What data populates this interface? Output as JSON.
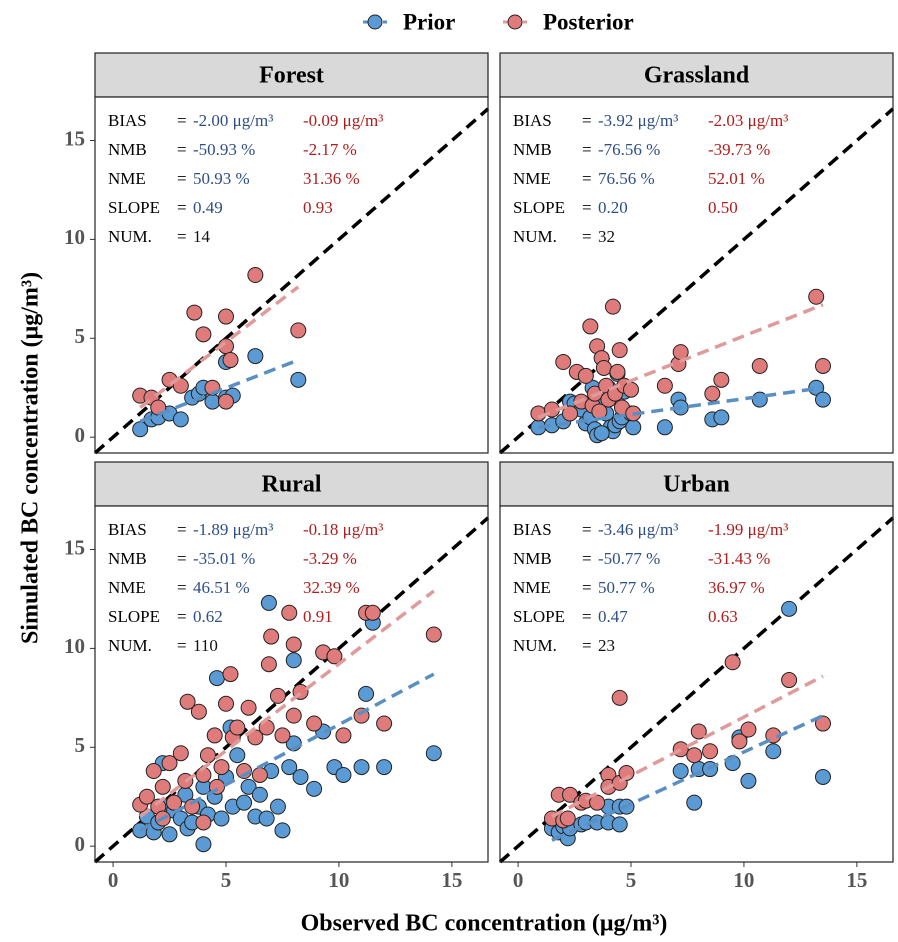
{
  "chart_data": [
    {
      "type": "scatter",
      "title": "Forest",
      "xlabel": "Observed BC concentration (μg/m³)",
      "ylabel": "Simulated BC concentration (μg/m³)",
      "xlim": [
        -0.8,
        16.6
      ],
      "ylim": [
        -0.8,
        17.2
      ],
      "yticks": [
        0,
        5,
        10,
        15
      ],
      "stats": [
        {
          "label": "BIAS",
          "sep": "=",
          "prior": "-2.00 μg/m³",
          "posterior": "-0.09 μg/m³"
        },
        {
          "label": "NMB",
          "sep": "=",
          "prior": "-50.93 %",
          "posterior": "-2.17 %"
        },
        {
          "label": "NME",
          "sep": "=",
          "prior": "50.93 %",
          "posterior": "31.36 %"
        },
        {
          "label": "SLOPE",
          "sep": "=",
          "prior": "0.49",
          "posterior": "0.93"
        },
        {
          "label": "NUM.",
          "sep": "=",
          "prior": "14"
        }
      ],
      "series": [
        {
          "name": "Prior",
          "color": "#5b9bd5",
          "line_color": "#5a8fc4",
          "x": [
            1.2,
            1.7,
            2.0,
            2.5,
            3.0,
            3.5,
            3.8,
            4.0,
            4.4,
            5.0,
            5.3,
            5.0,
            6.3,
            8.2
          ],
          "y": [
            0.4,
            0.9,
            1.0,
            1.2,
            0.9,
            2.0,
            2.2,
            2.5,
            1.8,
            2.0,
            2.1,
            3.8,
            4.1,
            2.9
          ],
          "fit": {
            "x": [
              1.2,
              8.2
            ],
            "y": [
              0.8,
              3.9
            ]
          }
        },
        {
          "name": "Posterior",
          "color": "#e07b7b",
          "line_color": "#e09a9a",
          "x": [
            1.2,
            1.7,
            2.0,
            2.5,
            3.0,
            3.6,
            4.0,
            4.4,
            5.0,
            5.0,
            5.2,
            5.0,
            6.3,
            8.2
          ],
          "y": [
            2.1,
            2.0,
            1.5,
            2.9,
            2.6,
            6.3,
            5.2,
            2.5,
            1.8,
            4.6,
            3.9,
            6.1,
            8.2,
            5.4
          ],
          "fit": {
            "x": [
              1.2,
              8.2
            ],
            "y": [
              1.5,
              7.6
            ]
          }
        }
      ]
    },
    {
      "type": "scatter",
      "title": "Grassland",
      "xlim": [
        -0.8,
        16.6
      ],
      "ylim": [
        -0.8,
        17.2
      ],
      "stats": [
        {
          "label": "BIAS",
          "sep": "=",
          "prior": "-3.92 μg/m³",
          "posterior": "-2.03 μg/m³"
        },
        {
          "label": "NMB",
          "sep": "=",
          "prior": "-76.56 %",
          "posterior": "-39.73 %"
        },
        {
          "label": "NME",
          "sep": "=",
          "prior": "76.56 %",
          "posterior": "52.01 %"
        },
        {
          "label": "SLOPE",
          "sep": "=",
          "prior": "0.20",
          "posterior": "0.50"
        },
        {
          "label": "NUM.",
          "sep": "=",
          "prior": "32"
        }
      ],
      "series": [
        {
          "name": "Prior",
          "color": "#5b9bd5",
          "line_color": "#5a8fc4",
          "x": [
            0.9,
            1.5,
            2.0,
            2.3,
            2.5,
            2.8,
            3.0,
            3.2,
            3.3,
            3.4,
            3.5,
            3.7,
            3.9,
            4.0,
            4.1,
            4.2,
            4.3,
            4.4,
            4.5,
            4.6,
            4.7,
            5.0,
            5.1,
            6.5,
            7.1,
            7.2,
            8.6,
            9.0,
            10.7,
            13.2,
            13.5,
            3.7
          ],
          "y": [
            0.5,
            0.6,
            0.8,
            1.8,
            1.7,
            1.4,
            0.7,
            1.0,
            2.5,
            0.4,
            0.1,
            1.8,
            1.2,
            2.5,
            0.5,
            0.3,
            0.6,
            3.2,
            0.8,
            1.0,
            2.3,
            1.2,
            0.5,
            0.5,
            1.9,
            1.5,
            0.9,
            1.0,
            1.9,
            2.5,
            1.9,
            0.2
          ],
          "fit": {
            "x": [
              0.9,
              13.5
            ],
            "y": [
              0.5,
              2.5
            ]
          }
        },
        {
          "name": "Posterior",
          "color": "#e07b7b",
          "line_color": "#e09a9a",
          "x": [
            0.9,
            1.5,
            2.0,
            2.3,
            2.6,
            2.8,
            3.0,
            3.2,
            3.3,
            3.4,
            3.5,
            3.7,
            3.8,
            3.9,
            4.0,
            4.2,
            4.3,
            4.4,
            4.5,
            4.6,
            4.7,
            5.0,
            5.1,
            6.5,
            7.1,
            7.2,
            8.6,
            9.0,
            10.7,
            13.2,
            13.5,
            3.6
          ],
          "y": [
            1.2,
            1.4,
            3.8,
            1.2,
            3.3,
            1.8,
            3.1,
            5.6,
            1.6,
            2.2,
            4.6,
            4.0,
            3.5,
            2.6,
            1.9,
            6.6,
            2.2,
            3.3,
            4.4,
            1.5,
            2.6,
            2.4,
            1.2,
            2.6,
            3.7,
            4.3,
            2.2,
            2.9,
            3.6,
            7.1,
            3.6,
            1.3
          ],
          "fit": {
            "x": [
              0.9,
              13.5
            ],
            "y": [
              1.0,
              6.7
            ]
          }
        }
      ]
    },
    {
      "type": "scatter",
      "title": "Rural",
      "xlim": [
        -0.8,
        16.6
      ],
      "ylim": [
        -0.8,
        17.2
      ],
      "xticks": [
        0,
        5,
        10,
        15
      ],
      "yticks": [
        0,
        5,
        10,
        15
      ],
      "stats": [
        {
          "label": "BIAS",
          "sep": "=",
          "prior": "-1.89 μg/m³",
          "posterior": "-0.18 μg/m³"
        },
        {
          "label": "NMB",
          "sep": "=",
          "prior": "-35.01 %",
          "posterior": "-3.29 %"
        },
        {
          "label": "NME",
          "sep": "=",
          "prior": "46.51 %",
          "posterior": "32.39 %"
        },
        {
          "label": "SLOPE",
          "sep": "=",
          "prior": "0.62",
          "posterior": "0.91"
        },
        {
          "label": "NUM.",
          "sep": "=",
          "prior": "110"
        }
      ],
      "series": [
        {
          "name": "Prior",
          "color": "#5b9bd5",
          "line_color": "#5a8fc4",
          "x": [
            1.2,
            1.5,
            1.8,
            2.0,
            2.2,
            2.2,
            2.5,
            2.7,
            3.0,
            3.2,
            3.3,
            3.5,
            3.8,
            4.0,
            4.0,
            4.2,
            4.5,
            4.6,
            4.8,
            5.0,
            5.2,
            5.3,
            5.5,
            5.8,
            6.0,
            6.3,
            6.5,
            6.8,
            6.9,
            7.0,
            7.3,
            7.5,
            7.8,
            8.0,
            8.0,
            8.3,
            8.9,
            9.3,
            9.8,
            10.2,
            11.0,
            11.2,
            12.0,
            11.5,
            14.2
          ],
          "y": [
            0.8,
            1.5,
            0.7,
            1.2,
            2.0,
            4.2,
            0.6,
            1.8,
            1.4,
            2.6,
            0.9,
            1.2,
            2.0,
            0.1,
            3.0,
            1.6,
            2.5,
            8.5,
            1.4,
            3.5,
            6.0,
            2.0,
            4.6,
            2.2,
            3.0,
            1.5,
            2.6,
            1.4,
            12.3,
            3.8,
            2.0,
            0.8,
            4.0,
            5.2,
            9.4,
            3.5,
            2.9,
            5.8,
            4.0,
            3.6,
            4.0,
            7.7,
            4.0,
            11.3,
            4.7
          ],
          "fit": {
            "x": [
              1.2,
              14.2
            ],
            "y": [
              0.8,
              8.7
            ]
          }
        },
        {
          "name": "Posterior",
          "color": "#e07b7b",
          "line_color": "#e09a9a",
          "x": [
            1.2,
            1.5,
            1.8,
            2.0,
            2.2,
            2.2,
            2.5,
            2.7,
            3.0,
            3.2,
            3.3,
            3.5,
            3.8,
            4.0,
            4.0,
            4.2,
            4.5,
            4.6,
            4.8,
            5.0,
            5.2,
            5.3,
            5.5,
            5.8,
            6.0,
            6.3,
            6.5,
            6.8,
            6.9,
            7.0,
            7.3,
            7.5,
            7.8,
            8.0,
            8.0,
            8.3,
            8.9,
            9.3,
            9.8,
            10.2,
            11.0,
            11.2,
            12.0,
            11.5,
            14.2
          ],
          "y": [
            2.1,
            2.5,
            3.8,
            2.0,
            3.0,
            1.4,
            4.2,
            2.2,
            4.7,
            3.3,
            7.3,
            2.0,
            6.8,
            3.6,
            1.2,
            4.6,
            5.6,
            3.0,
            4.0,
            7.2,
            8.7,
            5.5,
            6.0,
            3.8,
            7.0,
            5.5,
            3.6,
            6.0,
            9.2,
            10.6,
            7.6,
            5.6,
            11.8,
            6.6,
            10.2,
            7.8,
            6.2,
            9.8,
            9.6,
            5.6,
            6.6,
            11.8,
            6.2,
            11.8,
            10.7
          ],
          "fit": {
            "x": [
              1.2,
              14.2
            ],
            "y": [
              1.5,
              12.9
            ]
          }
        }
      ]
    },
    {
      "type": "scatter",
      "title": "Urban",
      "xlim": [
        -0.8,
        16.6
      ],
      "ylim": [
        -0.8,
        17.2
      ],
      "xticks": [
        0,
        5,
        10,
        15
      ],
      "stats": [
        {
          "label": "BIAS",
          "sep": "=",
          "prior": "-3.46 μg/m³",
          "posterior": "-1.99 μg/m³"
        },
        {
          "label": "NMB",
          "sep": "=",
          "prior": "-50.77 %",
          "posterior": "-31.43 %"
        },
        {
          "label": "NME",
          "sep": "=",
          "prior": "50.77 %",
          "posterior": "36.97 %"
        },
        {
          "label": "SLOPE",
          "sep": "=",
          "prior": "0.47",
          "posterior": "0.63"
        },
        {
          "label": "NUM.",
          "sep": "=",
          "prior": "23"
        }
      ],
      "series": [
        {
          "name": "Prior",
          "color": "#5b9bd5",
          "line_color": "#5a8fc4",
          "x": [
            1.5,
            1.8,
            2.0,
            2.2,
            2.3,
            2.8,
            3.0,
            3.5,
            4.0,
            4.0,
            4.5,
            4.5,
            4.8,
            7.2,
            7.8,
            8.0,
            8.5,
            9.5,
            9.8,
            10.2,
            11.3,
            12.0,
            13.5
          ],
          "y": [
            0.9,
            0.7,
            1.0,
            0.4,
            0.9,
            1.1,
            1.2,
            1.2,
            1.2,
            2.0,
            1.1,
            2.0,
            2.0,
            3.8,
            2.2,
            3.9,
            3.9,
            4.2,
            5.5,
            3.3,
            4.8,
            12.0,
            3.5
          ],
          "fit": {
            "x": [
              1.5,
              13.5
            ],
            "y": [
              0.3,
              6.6
            ]
          }
        },
        {
          "name": "Posterior",
          "color": "#e07b7b",
          "line_color": "#e09a9a",
          "x": [
            1.5,
            1.8,
            2.0,
            2.2,
            2.3,
            2.8,
            3.0,
            3.5,
            4.0,
            4.0,
            4.5,
            4.5,
            4.8,
            7.2,
            7.8,
            8.0,
            8.5,
            9.5,
            9.8,
            10.2,
            11.3,
            12.0,
            13.5
          ],
          "y": [
            1.4,
            2.6,
            1.3,
            1.4,
            2.6,
            2.2,
            2.3,
            2.2,
            3.6,
            3.0,
            7.5,
            3.2,
            3.7,
            4.9,
            4.6,
            5.8,
            4.8,
            9.3,
            5.3,
            5.9,
            5.6,
            8.4,
            6.2
          ],
          "fit": {
            "x": [
              1.5,
              13.5
            ],
            "y": [
              1.5,
              8.6
            ]
          }
        }
      ]
    }
  ]
}
